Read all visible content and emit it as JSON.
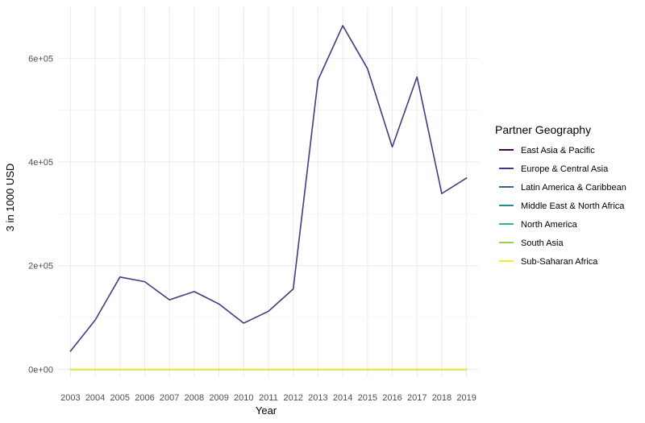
{
  "chart_data": {
    "type": "line",
    "title": "",
    "xlabel": "Year",
    "ylabel": "3 in 1000 USD",
    "x": [
      2003,
      2004,
      2005,
      2006,
      2007,
      2008,
      2009,
      2010,
      2011,
      2012,
      2013,
      2014,
      2015,
      2016,
      2017,
      2018,
      2019
    ],
    "ylim": [
      -15000,
      700000
    ],
    "y_ticks": [
      {
        "value": 0,
        "label": "0e+00"
      },
      {
        "value": 200000,
        "label": "2e+05"
      },
      {
        "value": 400000,
        "label": "4e+05"
      },
      {
        "value": 600000,
        "label": "6e+05"
      }
    ],
    "grid": true,
    "legend_title": "Partner Geography",
    "legend_position": "right",
    "series": [
      {
        "name": "East Asia & Pacific",
        "color": "#440154",
        "values": [
          0,
          0,
          0,
          0,
          0,
          0,
          0,
          0,
          0,
          0,
          0,
          0,
          0,
          0,
          0,
          0,
          0
        ]
      },
      {
        "name": "Europe & Central Asia",
        "color": "#443A83",
        "values": [
          35000,
          95000,
          178000,
          169000,
          134000,
          150000,
          126000,
          89000,
          112000,
          155000,
          558000,
          663000,
          580000,
          429000,
          564000,
          339000,
          369000
        ]
      },
      {
        "name": "Latin America & Caribbean",
        "color": "#31688E",
        "values": [
          0,
          0,
          0,
          0,
          0,
          0,
          0,
          0,
          0,
          0,
          0,
          0,
          0,
          0,
          0,
          0,
          0
        ]
      },
      {
        "name": "Middle East & North Africa",
        "color": "#21908C",
        "values": [
          0,
          0,
          0,
          0,
          0,
          0,
          0,
          0,
          0,
          0,
          0,
          0,
          0,
          0,
          0,
          0,
          0
        ]
      },
      {
        "name": "North America",
        "color": "#35B779",
        "values": [
          0,
          0,
          0,
          0,
          0,
          0,
          0,
          0,
          0,
          0,
          0,
          0,
          0,
          0,
          0,
          0,
          0
        ]
      },
      {
        "name": "South Asia",
        "color": "#8FD744",
        "values": [
          0,
          0,
          0,
          0,
          0,
          0,
          0,
          0,
          0,
          0,
          0,
          0,
          0,
          0,
          0,
          0,
          0
        ]
      },
      {
        "name": "Sub-Saharan Africa",
        "color": "#FDE725",
        "values": [
          0,
          0,
          0,
          0,
          0,
          0,
          0,
          0,
          0,
          0,
          0,
          0,
          0,
          0,
          0,
          0,
          0
        ]
      }
    ]
  }
}
